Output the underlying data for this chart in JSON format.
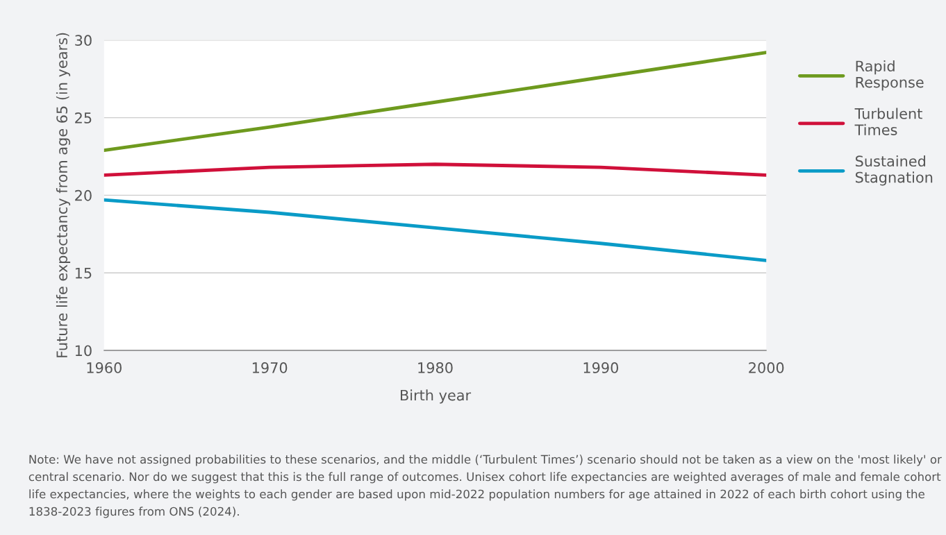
{
  "chart_data": {
    "type": "line",
    "xlabel": "Birth year",
    "ylabel": "Future life expectancy from age 65 (in years)",
    "x": [
      1960,
      1970,
      1980,
      1990,
      2000
    ],
    "series": [
      {
        "name": "Rapid Response",
        "color": "#6e9a1e",
        "values": [
          22.9,
          24.4,
          26.0,
          27.6,
          29.2
        ]
      },
      {
        "name": "Turbulent Times",
        "color": "#d0103a",
        "values": [
          21.3,
          21.8,
          22.0,
          21.8,
          21.3
        ]
      },
      {
        "name": "Sustained Stagnation",
        "color": "#0a9bc7",
        "values": [
          19.7,
          18.9,
          17.9,
          16.9,
          15.8
        ]
      }
    ],
    "xlim": [
      1960,
      2000
    ],
    "xticks": [
      1960,
      1970,
      1980,
      1990,
      2000
    ],
    "ylim": [
      10,
      30
    ],
    "yticks": [
      10,
      15,
      20,
      25,
      30
    ],
    "grid": "y",
    "legend": "right",
    "marker": "none",
    "line_style": "solid",
    "annotations": [
      "Note: We have not assigned probabilities to these scenarios, and the middle (‘Turbulent Times’) scenario should not be taken as a view on the 'most likely' or central scenario. Nor do we suggest that this is the full range of outcomes. Unisex cohort life expectancies are weighted averages of male and female cohort life expectancies, where the weights to each gender are based upon mid-2022 population numbers for age attained in 2022 of each birth cohort using the 1838-2023 figures from ONS (2024)."
    ]
  }
}
